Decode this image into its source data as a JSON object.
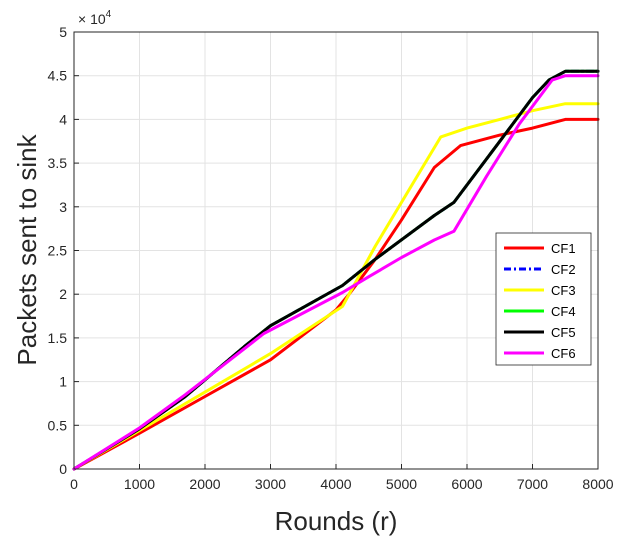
{
  "chart_data": {
    "type": "line",
    "title": "",
    "xlabel": "Rounds (r)",
    "ylabel": "Packets sent to sink",
    "exponent_label": "× 10",
    "exponent_power": "4",
    "xlim": [
      0,
      8000
    ],
    "ylim": [
      0,
      5
    ],
    "xticks": [
      "0",
      "1000",
      "2000",
      "3000",
      "4000",
      "5000",
      "6000",
      "7000",
      "8000"
    ],
    "yticks": [
      "0",
      "0.5",
      "1",
      "1.5",
      "2",
      "2.5",
      "3",
      "3.5",
      "4",
      "4.5",
      "5"
    ],
    "grid": true,
    "legend_position": "right",
    "series": [
      {
        "name": "CF1",
        "color": "#ff0000",
        "dash": "solid",
        "x": [
          0,
          1000,
          2000,
          3000,
          4000,
          4200,
          4600,
          5000,
          5500,
          5900,
          6500,
          7000,
          7500,
          8000
        ],
        "y": [
          0,
          0.41,
          0.83,
          1.25,
          1.82,
          2.0,
          2.4,
          2.85,
          3.45,
          3.7,
          3.82,
          3.9,
          4.0,
          4.0
        ]
      },
      {
        "name": "CF2",
        "color": "#0000ff",
        "dash": "dashdot",
        "x": [
          0,
          1000,
          1700,
          2600,
          3000,
          4100,
          4600,
          5500,
          5800,
          6500,
          7000,
          7250,
          7500,
          8000
        ],
        "y": [
          0,
          0.46,
          0.83,
          1.4,
          1.64,
          2.1,
          2.4,
          2.9,
          3.05,
          3.75,
          4.25,
          4.45,
          4.55,
          4.55
        ]
      },
      {
        "name": "CF3",
        "color": "#ffff00",
        "dash": "solid",
        "x": [
          0,
          1000,
          2000,
          3000,
          4100,
          4600,
          5000,
          5600,
          6000,
          6500,
          7000,
          7500,
          8000
        ],
        "y": [
          0,
          0.44,
          0.88,
          1.32,
          1.86,
          2.55,
          3.05,
          3.8,
          3.9,
          4.0,
          4.1,
          4.18,
          4.18
        ]
      },
      {
        "name": "CF4",
        "color": "#00ff00",
        "dash": "solid",
        "x": [
          0,
          1000,
          1700,
          2600,
          3000,
          4100,
          4600,
          5500,
          5800,
          6500,
          7000,
          7250,
          7500,
          8000
        ],
        "y": [
          0,
          0.46,
          0.83,
          1.4,
          1.64,
          2.1,
          2.4,
          2.9,
          3.05,
          3.75,
          4.25,
          4.45,
          4.55,
          4.55
        ]
      },
      {
        "name": "CF5",
        "color": "#000000",
        "dash": "solid",
        "x": [
          0,
          1000,
          1700,
          2600,
          3000,
          4100,
          4600,
          5500,
          5800,
          6500,
          7000,
          7250,
          7500,
          8000
        ],
        "y": [
          0,
          0.46,
          0.83,
          1.4,
          1.64,
          2.1,
          2.4,
          2.9,
          3.05,
          3.75,
          4.25,
          4.45,
          4.55,
          4.55
        ]
      },
      {
        "name": "CF6",
        "color": "#ff00ff",
        "dash": "solid",
        "x": [
          0,
          1000,
          1700,
          2900,
          4100,
          4500,
          5000,
          5500,
          5800,
          6300,
          6800,
          7300,
          7500,
          8000
        ],
        "y": [
          0,
          0.47,
          0.85,
          1.55,
          2.02,
          2.2,
          2.42,
          2.62,
          2.72,
          3.35,
          3.95,
          4.45,
          4.5,
          4.5
        ]
      }
    ]
  }
}
